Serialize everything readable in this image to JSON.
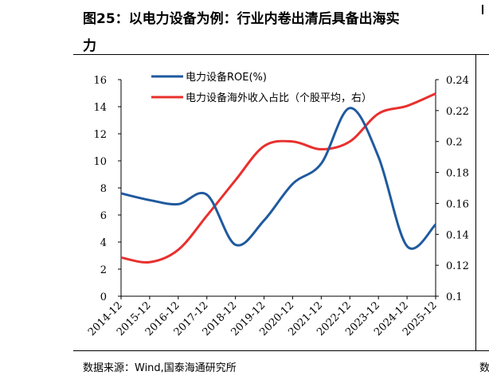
{
  "title": {
    "line1": "图25：以电力设备为例：行业内卷出清后具备出海实",
    "line2": "力"
  },
  "source": "数据来源：Wind,国泰海通研究所",
  "source_fragment": "数",
  "colors": {
    "series1": "#1f5a9e",
    "series2": "#e8302e",
    "axis": "#000000"
  },
  "chart_data": {
    "type": "line",
    "x": [
      "2014-12",
      "2015-12",
      "2016-12",
      "2017-12",
      "2018-12",
      "2019-12",
      "2020-12",
      "2021-12",
      "2022-12",
      "2023-12",
      "2024-12",
      "2025-12"
    ],
    "series": [
      {
        "name": "电力设备ROE(%)",
        "axis": "left",
        "values": [
          7.6,
          7.1,
          6.8,
          7.5,
          3.8,
          5.6,
          8.3,
          9.8,
          13.9,
          10.3,
          3.7,
          5.3
        ]
      },
      {
        "name": "电力设备海外收入占比（个股平均，右）",
        "axis": "right",
        "values": [
          0.125,
          0.122,
          0.13,
          0.152,
          0.175,
          0.197,
          0.2,
          0.195,
          0.2,
          0.218,
          0.223,
          0.231
        ]
      }
    ],
    "ylim": [
      0,
      16
    ],
    "yticks": [
      0,
      2,
      4,
      6,
      8,
      10,
      12,
      14,
      16
    ],
    "y2lim": [
      0.1,
      0.24
    ],
    "y2ticks": [
      "0.1",
      "0.12",
      "0.14",
      "0.16",
      "0.18",
      "0.2",
      "0.22",
      "0.24"
    ],
    "legend_position": "top",
    "grid": false
  }
}
